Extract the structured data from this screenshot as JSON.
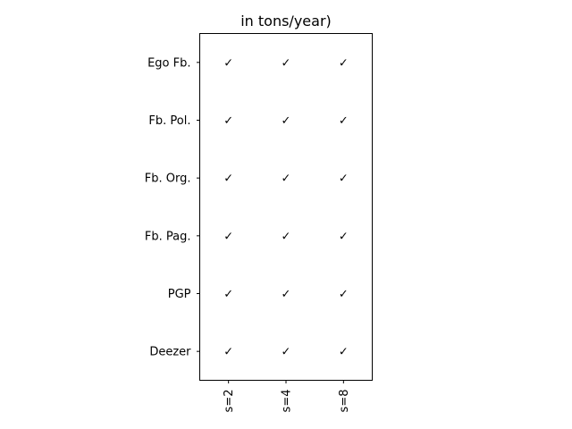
{
  "chart_data": {
    "type": "table",
    "title": "in tons/year)",
    "xlabel": "",
    "ylabel": "",
    "columns": [
      "s=2",
      "s=4",
      "s=8"
    ],
    "rows": [
      "Ego Fb.",
      "Fb. Pol.",
      "Fb. Org.",
      "Fb. Pag.",
      "PGP",
      "Deezer"
    ],
    "cells": [
      [
        "✓",
        "✓",
        "✓"
      ],
      [
        "✓",
        "✓",
        "✓"
      ],
      [
        "✓",
        "✓",
        "✓"
      ],
      [
        "✓",
        "✓",
        "✓"
      ],
      [
        "✓",
        "✓",
        "✓"
      ],
      [
        "✓",
        "✓",
        "✓"
      ]
    ],
    "grid": false,
    "legend": "none",
    "colors": {
      "text": "#000000",
      "axes": "#000000",
      "background": "#ffffff"
    }
  }
}
